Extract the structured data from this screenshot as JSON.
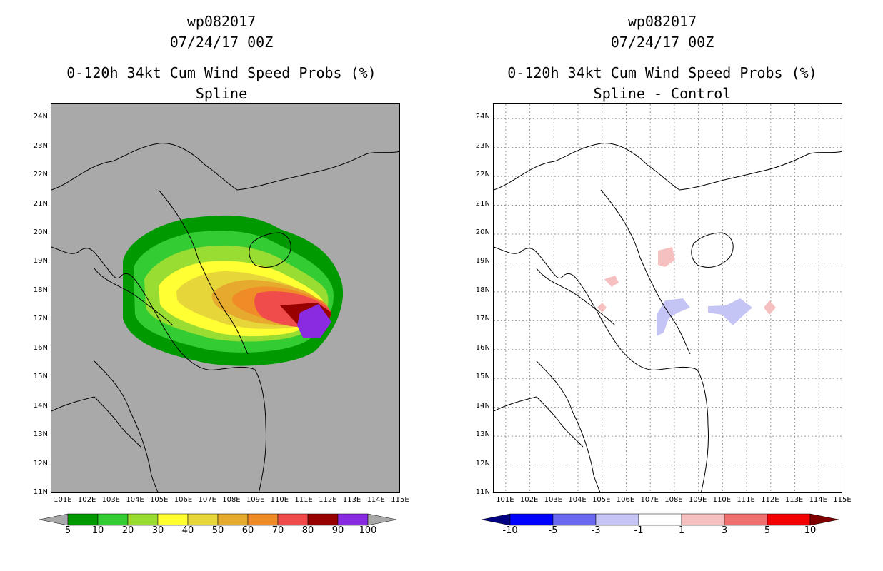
{
  "left_panel": {
    "storm_id": "wp082017",
    "date": "07/24/17 00Z",
    "product": "0-120h 34kt Cum Wind Speed Probs (%)",
    "subtitle": "Spline",
    "background_color": "#a9a9a9",
    "colorbar": {
      "labels": [
        "5",
        "10",
        "20",
        "30",
        "40",
        "50",
        "60",
        "70",
        "80",
        "90",
        "100"
      ],
      "colors": [
        "#009900",
        "#33cc33",
        "#99dd33",
        "#ffff33",
        "#e6d63a",
        "#e5aa2e",
        "#f08c28",
        "#f04c4c",
        "#990000",
        "#8a2be2"
      ],
      "end_color": "#a9a9a9"
    }
  },
  "right_panel": {
    "storm_id": "wp082017",
    "date": "07/24/17 00Z",
    "product": "0-120h 34kt Cum Wind Speed Probs (%)",
    "subtitle": "Spline - Control",
    "background_color": "#ffffff",
    "colorbar": {
      "labels": [
        "-10",
        "-5",
        "-3",
        "-1",
        "1",
        "3",
        "5",
        "10"
      ],
      "colors": [
        "#0000ff",
        "#6a6af0",
        "#c4c4f5",
        "#ffffff",
        "#f7c0c0",
        "#f07070",
        "#f00000"
      ],
      "low_end_color": "#000080",
      "high_end_color": "#800000"
    }
  },
  "map": {
    "lat_labels": [
      "24N",
      "23N",
      "22N",
      "21N",
      "20N",
      "19N",
      "18N",
      "17N",
      "16N",
      "15N",
      "14N",
      "13N",
      "12N",
      "11N"
    ],
    "lon_labels": [
      "101E",
      "102E",
      "103E",
      "104E",
      "105E",
      "106E",
      "107E",
      "108E",
      "109E",
      "110E",
      "111E",
      "112E",
      "113E",
      "114E",
      "115E"
    ],
    "lat_range": [
      11,
      24.5
    ],
    "lon_range": [
      100.5,
      115
    ],
    "gridlines": "dotted (right panel)"
  }
}
